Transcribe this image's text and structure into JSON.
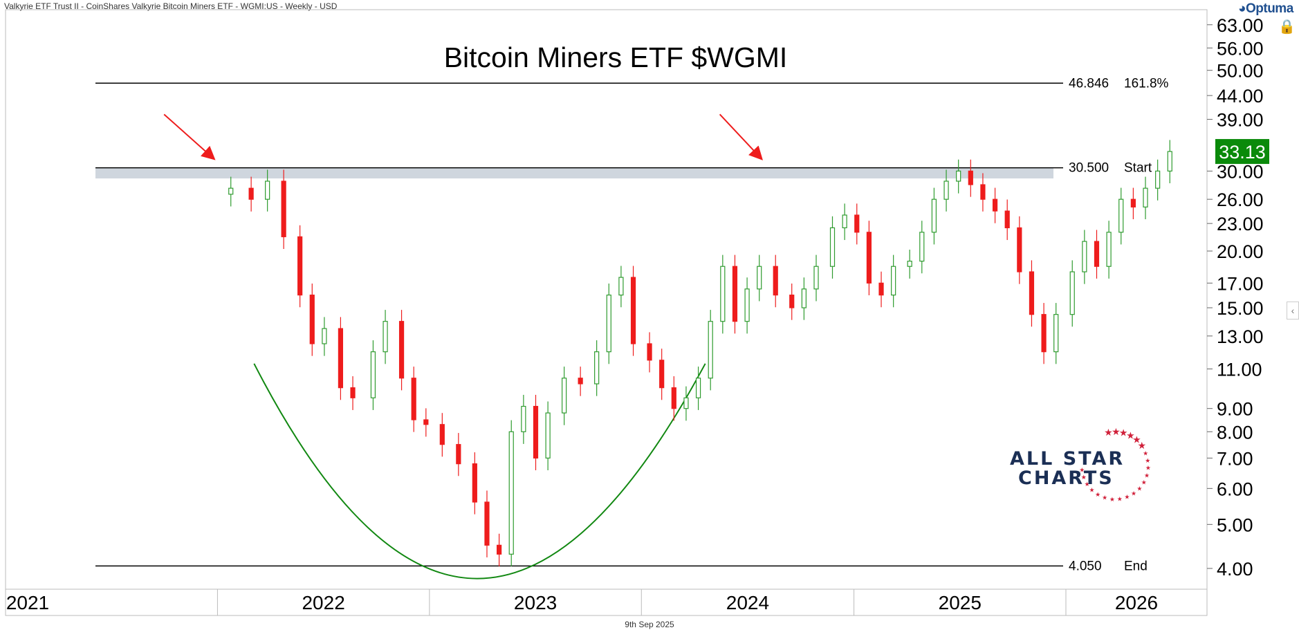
{
  "header": {
    "text": "Valkyrie ETF Trust II - CoinShares Valkyrie Bitcoin Miners ETF - WGMI:US - Weekly - USD"
  },
  "brand": {
    "name": "Optuma",
    "icon": "optuma-logo-icon"
  },
  "lock_icon": "lock-icon",
  "footer": {
    "date": "9th Sep 2025"
  },
  "logo": {
    "line1": "ALL STAR",
    "line2": "CHARTS"
  },
  "colors": {
    "up": "#2e9b2e",
    "down": "#ee1c1c",
    "price_badge": "#0a8a0a",
    "arc": "#118811",
    "arrow": "#ee1c1c",
    "band": "#cfd6de"
  },
  "chart_data": {
    "type": "candlestick",
    "title": "Bitcoin Miners ETF $WGMI",
    "y_scale": "log",
    "ylim": [
      3.6,
      68
    ],
    "x_range": [
      "2021-01-01",
      "2026-09-01"
    ],
    "y_ticks": [
      "63.00",
      "56.00",
      "50.00",
      "44.00",
      "39.00",
      "30.00",
      "26.00",
      "23.00",
      "20.00",
      "17.00",
      "15.00",
      "13.00",
      "11.00",
      "9.00",
      "8.00",
      "7.00",
      "6.00",
      "5.00",
      "4.00"
    ],
    "x_ticks": [
      {
        "label": "2021",
        "date": "2021-01-01"
      },
      {
        "label": "2022",
        "date": "2022-01-01"
      },
      {
        "label": "2023",
        "date": "2023-01-01"
      },
      {
        "label": "2024",
        "date": "2024-01-01"
      },
      {
        "label": "2025",
        "date": "2025-01-01"
      },
      {
        "label": "2026",
        "date": "2026-01-01"
      }
    ],
    "last_price": "33.13",
    "levels": [
      {
        "value": 46.846,
        "label": "46.846",
        "note": "161.8%"
      },
      {
        "value": 30.5,
        "label": "30.500",
        "note": "Start"
      },
      {
        "value": 4.05,
        "label": "4.050",
        "note": "End"
      }
    ],
    "resistance_band": [
      28.9,
      30.5
    ],
    "arrows": [
      {
        "from_date": "2021-10-01",
        "from_price": 40,
        "to_date": "2021-12-25",
        "to_price": 32
      },
      {
        "from_date": "2024-05-15",
        "from_price": 40,
        "to_date": "2024-07-25",
        "to_price": 32
      }
    ],
    "cup_arc": {
      "start_date": "2022-03-05",
      "end_date": "2024-04-20",
      "rim_price": 11.3,
      "bottom_date": "2023-03-20",
      "bottom_price": 3.8
    },
    "series": [
      {
        "date": "2022-01-24",
        "close": 27.5
      },
      {
        "date": "2022-02-28",
        "close": 26.0
      },
      {
        "date": "2022-03-28",
        "close": 28.5
      },
      {
        "date": "2022-04-25",
        "close": 21.5
      },
      {
        "date": "2022-05-23",
        "close": 16.0
      },
      {
        "date": "2022-06-13",
        "close": 12.5
      },
      {
        "date": "2022-07-04",
        "close": 13.5
      },
      {
        "date": "2022-08-01",
        "close": 10.0
      },
      {
        "date": "2022-08-22",
        "close": 9.5
      },
      {
        "date": "2022-09-26",
        "close": 12.0
      },
      {
        "date": "2022-10-17",
        "close": 14.0
      },
      {
        "date": "2022-11-14",
        "close": 10.5
      },
      {
        "date": "2022-12-05",
        "close": 8.5
      },
      {
        "date": "2022-12-26",
        "close": 8.3
      },
      {
        "date": "2023-01-23",
        "close": 7.5
      },
      {
        "date": "2023-02-20",
        "close": 6.8
      },
      {
        "date": "2023-03-20",
        "close": 5.6
      },
      {
        "date": "2023-04-10",
        "close": 4.5
      },
      {
        "date": "2023-05-01",
        "close": 4.3
      },
      {
        "date": "2023-05-22",
        "close": 8.0
      },
      {
        "date": "2023-06-12",
        "close": 9.1
      },
      {
        "date": "2023-07-03",
        "close": 7.0
      },
      {
        "date": "2023-07-24",
        "close": 8.8
      },
      {
        "date": "2023-08-21",
        "close": 10.5
      },
      {
        "date": "2023-09-18",
        "close": 10.2
      },
      {
        "date": "2023-10-16",
        "close": 12.0
      },
      {
        "date": "2023-11-06",
        "close": 16.0
      },
      {
        "date": "2023-11-27",
        "close": 17.5
      },
      {
        "date": "2023-12-18",
        "close": 12.5
      },
      {
        "date": "2024-01-15",
        "close": 11.5
      },
      {
        "date": "2024-02-05",
        "close": 10.0
      },
      {
        "date": "2024-02-26",
        "close": 9.0
      },
      {
        "date": "2024-03-18",
        "close": 9.5
      },
      {
        "date": "2024-04-08",
        "close": 10.5
      },
      {
        "date": "2024-04-29",
        "close": 14.0
      },
      {
        "date": "2024-05-20",
        "close": 18.5
      },
      {
        "date": "2024-06-10",
        "close": 14.0
      },
      {
        "date": "2024-07-01",
        "close": 16.5
      },
      {
        "date": "2024-07-22",
        "close": 18.5
      },
      {
        "date": "2024-08-19",
        "close": 16.0
      },
      {
        "date": "2024-09-16",
        "close": 15.0
      },
      {
        "date": "2024-10-07",
        "close": 16.5
      },
      {
        "date": "2024-10-28",
        "close": 18.5
      },
      {
        "date": "2024-11-25",
        "close": 22.5
      },
      {
        "date": "2024-12-16",
        "close": 24.0
      },
      {
        "date": "2025-01-06",
        "close": 22.0
      },
      {
        "date": "2025-01-27",
        "close": 17.0
      },
      {
        "date": "2025-02-17",
        "close": 16.0
      },
      {
        "date": "2025-03-10",
        "close": 18.5
      },
      {
        "date": "2025-04-07",
        "close": 19.0
      },
      {
        "date": "2025-04-28",
        "close": 22.0
      },
      {
        "date": "2025-05-19",
        "close": 26.0
      },
      {
        "date": "2025-06-09",
        "close": 28.5
      },
      {
        "date": "2025-06-30",
        "close": 30.0
      },
      {
        "date": "2025-07-21",
        "close": 28.0
      },
      {
        "date": "2025-08-11",
        "close": 26.0
      },
      {
        "date": "2025-09-01",
        "close": 24.5
      },
      {
        "date": "2025-09-22",
        "close": 22.5
      },
      {
        "date": "2025-10-13",
        "close": 18.0
      },
      {
        "date": "2025-11-03",
        "close": 14.5
      },
      {
        "date": "2025-11-24",
        "close": 12.0
      },
      {
        "date": "2025-12-15",
        "close": 14.5
      },
      {
        "date": "2026-01-12",
        "close": 18.0
      },
      {
        "date": "2026-02-02",
        "close": 21.0
      },
      {
        "date": "2026-02-23",
        "close": 18.5
      },
      {
        "date": "2026-03-16",
        "close": 22.0
      },
      {
        "date": "2026-04-06",
        "close": 26.0
      },
      {
        "date": "2026-04-27",
        "close": 25.0
      },
      {
        "date": "2026-05-18",
        "close": 27.5
      },
      {
        "date": "2026-06-08",
        "close": 30.0
      },
      {
        "date": "2026-06-29",
        "close": 33.13
      }
    ]
  }
}
